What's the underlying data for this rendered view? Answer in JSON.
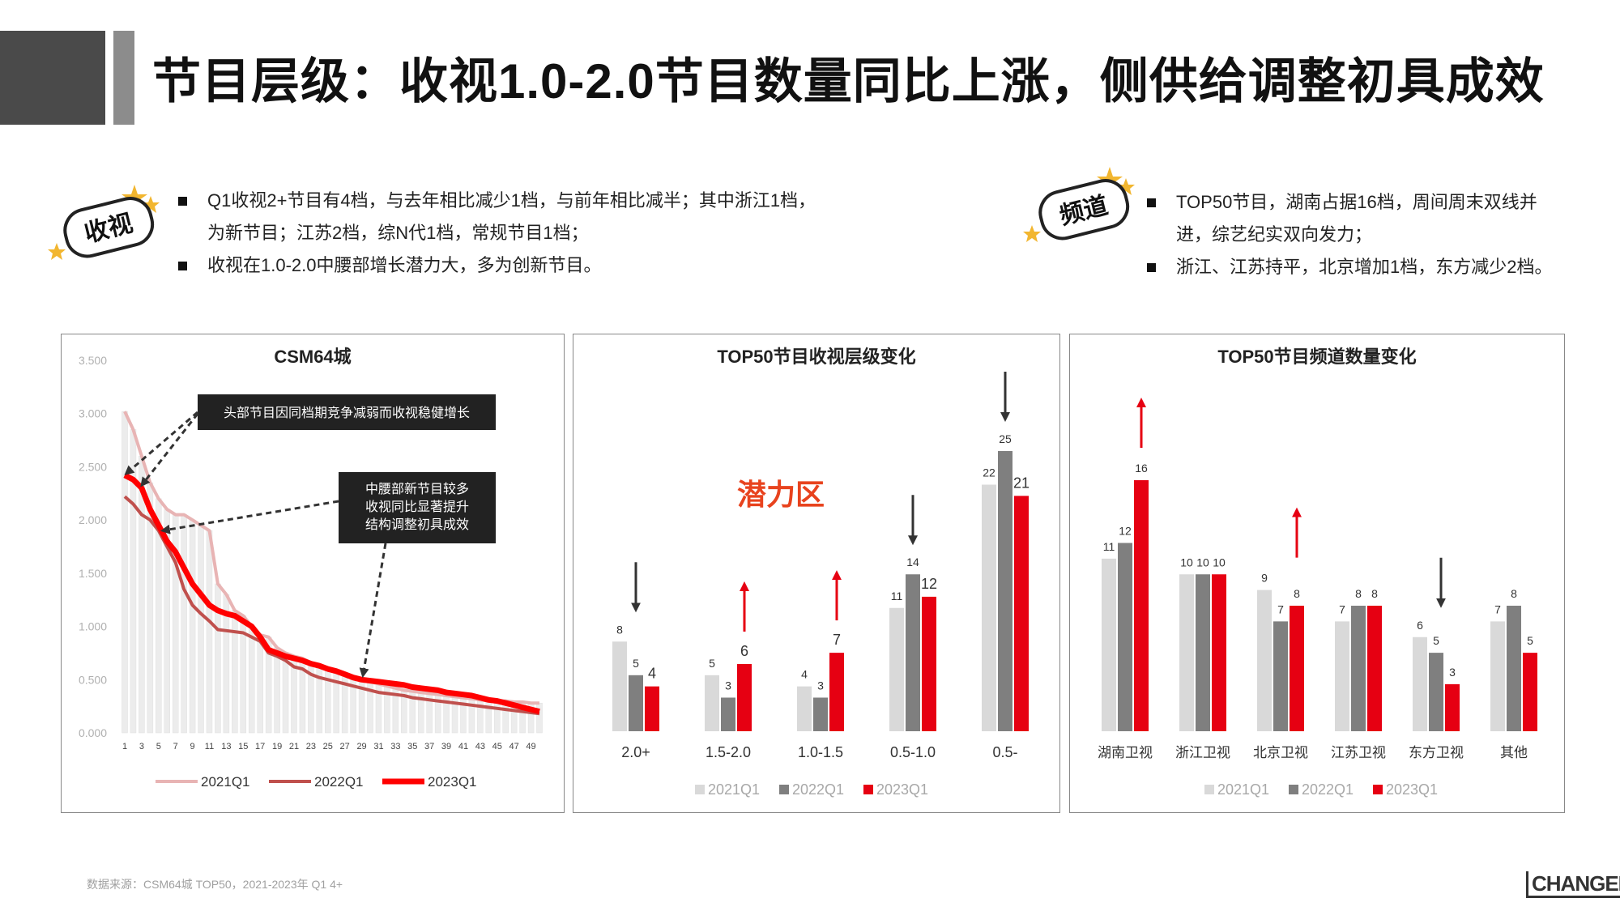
{
  "title": "节目层级：收视1.0-2.0节目数量同比上涨，侧供给调整初具成效",
  "left_badge": "收视",
  "right_badge": "频道",
  "left_bullets": {
    "b1_line1": "Q1收视2+节目有4档，与去年相比减少1档，与前年相比减半；其中浙江1档，",
    "b1_line2": "为新节目；江苏2档，综N代1档，常规节目1档；",
    "b2": "收视在1.0-2.0中腰部增长潜力大，多为创新节目。"
  },
  "right_bullets": {
    "b1_line1": "TOP50节目，湖南占据16档，周间周末双线并",
    "b1_line2": "进，综艺纪实双向发力；",
    "b2": "浙江、江苏持平，北京增加1档，东方减少2档。"
  },
  "source": "数据来源：CSM64城  TOP50，2021-2023年 Q1  4+",
  "logo": "CHANGEMO",
  "colors": {
    "c2021": "#d9d9d9",
    "c2022": "#7f7f7f",
    "c2023": "#e60012",
    "line2021": "#e8b4b4",
    "line2022": "#c0504d",
    "line2023": "#ff0000"
  },
  "chart_data": [
    {
      "type": "line",
      "title": "CSM64城",
      "x_tick_labels": [
        "1",
        "3",
        "5",
        "7",
        "9",
        "11",
        "13",
        "15",
        "17",
        "19",
        "21",
        "23",
        "25",
        "27",
        "29",
        "31",
        "33",
        "35",
        "37",
        "39",
        "41",
        "43",
        "45",
        "47",
        "49"
      ],
      "y_tick_labels": [
        "0.000",
        "0.500",
        "1.000",
        "1.500",
        "2.000",
        "2.500",
        "3.000",
        "3.500"
      ],
      "ylim": [
        0,
        3.5
      ],
      "x": [
        1,
        2,
        3,
        4,
        5,
        6,
        7,
        8,
        9,
        10,
        11,
        12,
        13,
        14,
        15,
        16,
        17,
        18,
        19,
        20,
        21,
        22,
        23,
        24,
        25,
        26,
        27,
        28,
        29,
        30,
        31,
        32,
        33,
        34,
        35,
        36,
        37,
        38,
        39,
        40,
        41,
        42,
        43,
        44,
        45,
        46,
        47,
        48,
        49,
        50
      ],
      "series": [
        {
          "name": "2021Q1",
          "values": [
            3.02,
            2.85,
            2.6,
            2.35,
            2.2,
            2.1,
            2.05,
            2.05,
            2.0,
            1.95,
            1.9,
            1.4,
            1.3,
            1.15,
            1.1,
            1.0,
            0.92,
            0.9,
            0.8,
            0.75,
            0.72,
            0.7,
            0.66,
            0.62,
            0.6,
            0.58,
            0.55,
            0.52,
            0.5,
            0.48,
            0.46,
            0.44,
            0.42,
            0.4,
            0.39,
            0.38,
            0.37,
            0.36,
            0.35,
            0.34,
            0.33,
            0.32,
            0.31,
            0.3,
            0.3,
            0.3,
            0.29,
            0.29,
            0.28,
            0.28
          ]
        },
        {
          "name": "2022Q1",
          "values": [
            2.22,
            2.15,
            2.05,
            2.0,
            1.9,
            1.75,
            1.6,
            1.35,
            1.2,
            1.12,
            1.05,
            0.97,
            0.96,
            0.95,
            0.94,
            0.9,
            0.86,
            0.75,
            0.72,
            0.68,
            0.62,
            0.6,
            0.55,
            0.52,
            0.5,
            0.48,
            0.46,
            0.44,
            0.42,
            0.4,
            0.38,
            0.37,
            0.36,
            0.35,
            0.33,
            0.32,
            0.31,
            0.3,
            0.29,
            0.28,
            0.27,
            0.26,
            0.25,
            0.24,
            0.23,
            0.22,
            0.21,
            0.2,
            0.19,
            0.18
          ]
        },
        {
          "name": "2023Q1",
          "values": [
            2.42,
            2.38,
            2.3,
            2.1,
            1.95,
            1.8,
            1.7,
            1.55,
            1.4,
            1.3,
            1.2,
            1.15,
            1.12,
            1.1,
            1.05,
            1.0,
            0.9,
            0.78,
            0.75,
            0.72,
            0.7,
            0.68,
            0.65,
            0.63,
            0.6,
            0.58,
            0.55,
            0.52,
            0.5,
            0.49,
            0.48,
            0.47,
            0.46,
            0.45,
            0.43,
            0.42,
            0.41,
            0.4,
            0.38,
            0.37,
            0.36,
            0.35,
            0.33,
            0.31,
            0.3,
            0.28,
            0.26,
            0.24,
            0.22,
            0.2
          ]
        }
      ],
      "annotations": [
        "头部节目因同档期竞争减弱而收视稳健增长",
        "中腰部新节目较多\n收视同比显著提升\n结构调整初具成效"
      ]
    },
    {
      "type": "bar",
      "title": "TOP50节目收视层级变化",
      "categories": [
        "2.0+",
        "1.5-2.0",
        "1.0-1.5",
        "0.5-1.0",
        "0.5-"
      ],
      "series": [
        {
          "name": "2021Q1",
          "values": [
            8,
            5,
            4,
            11,
            22
          ]
        },
        {
          "name": "2022Q1",
          "values": [
            5,
            3,
            3,
            14,
            25
          ]
        },
        {
          "name": "2023Q1",
          "values": [
            4,
            6,
            7,
            12,
            21
          ]
        }
      ],
      "ylim": [
        0,
        25
      ],
      "annotation": "潜力区",
      "trend": [
        "down",
        "up",
        "up",
        "down",
        "down"
      ]
    },
    {
      "type": "bar",
      "title": "TOP50节目频道数量变化",
      "categories": [
        "湖南卫视",
        "浙江卫视",
        "北京卫视",
        "江苏卫视",
        "东方卫视",
        "其他"
      ],
      "series": [
        {
          "name": "2021Q1",
          "values": [
            11,
            10,
            9,
            7,
            6,
            7
          ]
        },
        {
          "name": "2022Q1",
          "values": [
            12,
            10,
            7,
            8,
            5,
            8
          ]
        },
        {
          "name": "2023Q1",
          "values": [
            16,
            10,
            8,
            8,
            3,
            5
          ]
        }
      ],
      "ylim": [
        0,
        16
      ],
      "trend": [
        "up",
        "",
        "up",
        "",
        "down",
        ""
      ]
    }
  ]
}
